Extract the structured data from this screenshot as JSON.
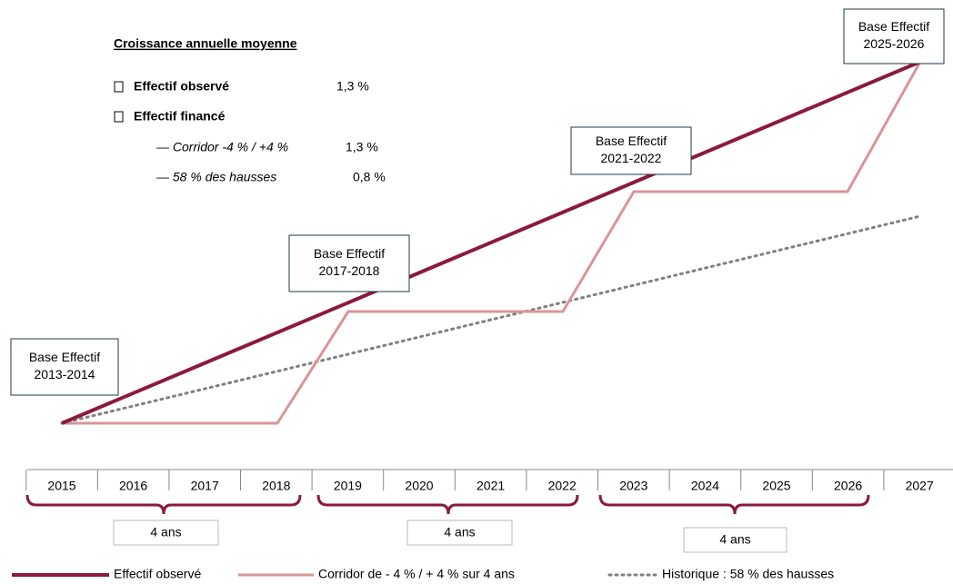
{
  "summary": {
    "title": "Croissance annuelle moyenne",
    "observed": {
      "label": "Effectif observé",
      "value": "1,3 %"
    },
    "funded": {
      "label": "Effectif financé"
    },
    "corridor": {
      "label": "— Corridor -4 % / +4 %",
      "value": "1,3 %"
    },
    "historic": {
      "label": "— 58 % des hausses",
      "value": "0,8 %"
    }
  },
  "bases": [
    [
      "Base Effectif",
      "2013-2014"
    ],
    [
      "Base Effectif",
      "2017-2018"
    ],
    [
      "Base Effectif",
      "2021-2022"
    ],
    [
      "Base Effectif",
      "2025-2026"
    ]
  ],
  "years": [
    "2015",
    "2016",
    "2017",
    "2018",
    "2019",
    "2020",
    "2021",
    "2022",
    "2023",
    "2024",
    "2025",
    "2026",
    "2027"
  ],
  "periods": [
    "4 ans",
    "4 ans",
    "4 ans"
  ],
  "legend": [
    "Effectif observé",
    "Corridor de - 4 % / + 4 % sur 4 ans",
    "Historique : 58 % des hausses"
  ]
}
